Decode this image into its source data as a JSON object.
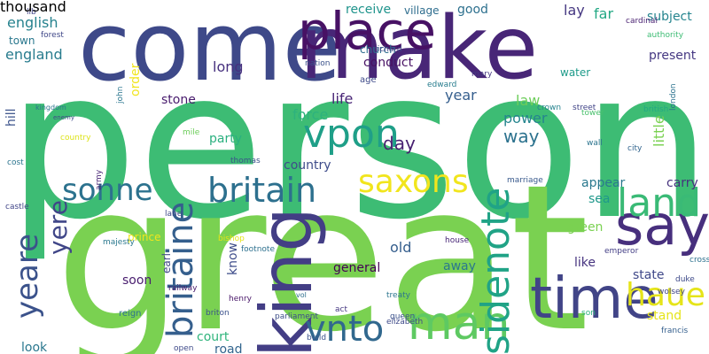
{
  "words": [
    {
      "text": "person",
      "color": "#3dbc74",
      "rotate": false
    },
    {
      "text": "great",
      "color": "#7ad151",
      "rotate": false
    },
    {
      "text": "come",
      "color": "#3e4989",
      "rotate": false
    },
    {
      "text": "make",
      "color": "#482677",
      "rotate": false
    },
    {
      "text": "place",
      "color": "#471164",
      "rotate": false
    },
    {
      "text": "king",
      "color": "#433e85",
      "rotate": true
    },
    {
      "text": "time",
      "color": "#414487",
      "rotate": false
    },
    {
      "text": "say",
      "color": "#472f7d",
      "rotate": false
    },
    {
      "text": "man",
      "color": "#5ec962",
      "rotate": false
    },
    {
      "text": "sidenote",
      "color": "#20a386",
      "rotate": true
    },
    {
      "text": "land",
      "color": "#3aba76",
      "rotate": false
    },
    {
      "text": "vnto",
      "color": "#31688e",
      "rotate": false
    },
    {
      "text": "saxons",
      "color": "#f1e51d",
      "rotate": false
    },
    {
      "text": "britaine",
      "color": "#355f8d",
      "rotate": true
    },
    {
      "text": "britain",
      "color": "#2d708e",
      "rotate": false
    },
    {
      "text": "sonne",
      "color": "#2c728e",
      "rotate": false
    },
    {
      "text": "vpon",
      "color": "#1f9f88",
      "rotate": false
    },
    {
      "text": "haue",
      "color": "#e5e419",
      "rotate": false
    },
    {
      "text": "yeare",
      "color": "#3b528b",
      "rotate": true
    },
    {
      "text": "yere",
      "color": "#404688",
      "rotate": true
    },
    {
      "text": "english",
      "color": "#26828e",
      "rotate": false
    },
    {
      "text": "england",
      "color": "#287c8e",
      "rotate": false
    },
    {
      "text": "town",
      "color": "#2a788e",
      "rotate": false
    },
    {
      "text": "receive",
      "color": "#1f948c",
      "rotate": false
    },
    {
      "text": "village",
      "color": "#2e6d8e",
      "rotate": false
    },
    {
      "text": "good",
      "color": "#2d708e",
      "rotate": false
    },
    {
      "text": "lay",
      "color": "#453781",
      "rotate": false
    },
    {
      "text": "far",
      "color": "#22a884",
      "rotate": false
    },
    {
      "text": "subject",
      "color": "#25848e",
      "rotate": false
    },
    {
      "text": "authority",
      "color": "#3dbc74",
      "rotate": false
    },
    {
      "text": "church",
      "color": "#2e6e8e",
      "rotate": false
    },
    {
      "text": "conduct",
      "color": "#471063",
      "rotate": false
    },
    {
      "text": "present",
      "color": "#453882",
      "rotate": false
    },
    {
      "text": "long",
      "color": "#46307e",
      "rotate": false
    },
    {
      "text": "order",
      "color": "#f1e51d",
      "rotate": true
    },
    {
      "text": "age",
      "color": "#3e4a89",
      "rotate": false
    },
    {
      "text": "water",
      "color": "#1e9b8a",
      "rotate": false
    },
    {
      "text": "life",
      "color": "#482576",
      "rotate": false
    },
    {
      "text": "year",
      "color": "#355e8d",
      "rotate": false
    },
    {
      "text": "law",
      "color": "#6ccd5a",
      "rotate": false
    },
    {
      "text": "kingdom",
      "color": "#2b758e",
      "rotate": false
    },
    {
      "text": "hill",
      "color": "#3b528b",
      "rotate": true
    },
    {
      "text": "stone",
      "color": "#481b6d",
      "rotate": false
    },
    {
      "text": "force",
      "color": "#2db27d",
      "rotate": false
    },
    {
      "text": "power",
      "color": "#25858e",
      "rotate": false
    },
    {
      "text": "way",
      "color": "#2c728e",
      "rotate": false
    },
    {
      "text": "little",
      "color": "#7ad151",
      "rotate": true
    },
    {
      "text": "day",
      "color": "#482071",
      "rotate": false
    },
    {
      "text": "enemy",
      "color": "#3f4788",
      "rotate": false
    },
    {
      "text": "party",
      "color": "#2ab07f",
      "rotate": false
    },
    {
      "text": "country",
      "color": "#3e4c8a",
      "rotate": false
    },
    {
      "text": "appear",
      "color": "#2a788e",
      "rotate": false
    },
    {
      "text": "carry",
      "color": "#46327e",
      "rotate": false
    },
    {
      "text": "sea",
      "color": "#1f988b",
      "rotate": false
    },
    {
      "text": "green",
      "color": "#7ad151",
      "rotate": false
    },
    {
      "text": "old",
      "color": "#355e8d",
      "rotate": false
    },
    {
      "text": "earl",
      "color": "#3f4788",
      "rotate": true
    },
    {
      "text": "know",
      "color": "#3e4c8a",
      "rotate": true
    },
    {
      "text": "soon",
      "color": "#481c6e",
      "rotate": false
    },
    {
      "text": "general",
      "color": "#440154",
      "rotate": false
    },
    {
      "text": "away",
      "color": "#2a788e",
      "rotate": false
    },
    {
      "text": "like",
      "color": "#46337f",
      "rotate": false
    },
    {
      "text": "state",
      "color": "#3f4889",
      "rotate": false
    },
    {
      "text": "duke",
      "color": "#3e4a89",
      "rotate": false
    },
    {
      "text": "stand",
      "color": "#e5e419",
      "rotate": false
    },
    {
      "text": "court",
      "color": "#2fb47c",
      "rotate": false
    },
    {
      "text": "prince",
      "color": "#f1e51d",
      "rotate": false
    },
    {
      "text": "reign",
      "color": "#2c728e",
      "rotate": false
    },
    {
      "text": "briton",
      "color": "#3b528b",
      "rotate": false
    },
    {
      "text": "henry",
      "color": "#481668",
      "rotate": false
    },
    {
      "text": "vol",
      "color": "#2e6e8e",
      "rotate": false
    },
    {
      "text": "road",
      "color": "#32658e",
      "rotate": false
    },
    {
      "text": "look",
      "color": "#2a778e",
      "rotate": false
    },
    {
      "text": "house",
      "color": "#482677",
      "rotate": false
    },
    {
      "text": "richard",
      "color": "#414487",
      "rotate": false
    },
    {
      "text": "crown",
      "color": "#25838e",
      "rotate": false
    },
    {
      "text": "street",
      "color": "#414487",
      "rotate": false
    },
    {
      "text": "british",
      "color": "#22a884",
      "rotate": false
    },
    {
      "text": "city",
      "color": "#32658e",
      "rotate": false
    },
    {
      "text": "cardinal",
      "color": "#481f70",
      "rotate": false
    },
    {
      "text": "son",
      "color": "#2db27d",
      "rotate": false
    },
    {
      "text": "francis",
      "color": "#355f8d",
      "rotate": false
    },
    {
      "text": "cross",
      "color": "#2c718e",
      "rotate": false
    },
    {
      "text": "marriage",
      "color": "#38598c",
      "rotate": false
    },
    {
      "text": "parliament",
      "color": "#3d4e8a",
      "rotate": false
    },
    {
      "text": "elizabeth",
      "color": "#3e4a89",
      "rotate": false
    },
    {
      "text": "footnote",
      "color": "#2d708e",
      "rotate": false
    },
    {
      "text": "castle",
      "color": "#404588",
      "rotate": false
    },
    {
      "text": "railway",
      "color": "#481a6c",
      "rotate": false
    },
    {
      "text": "john",
      "color": "#2a768e",
      "rotate": true
    },
    {
      "text": "thomas",
      "color": "#3b528b",
      "rotate": false
    },
    {
      "text": "lib",
      "color": "#404387",
      "rotate": false
    },
    {
      "text": "cost",
      "color": "#2b748e",
      "rotate": false
    },
    {
      "text": "mile",
      "color": "#6ccd5a",
      "rotate": false
    },
    {
      "text": "country",
      "color": "#dde318",
      "rotate": false
    },
    {
      "text": "tower",
      "color": "#4ac16d",
      "rotate": false
    },
    {
      "text": "wall",
      "color": "#2b748e",
      "rotate": false
    },
    {
      "text": "wolsey",
      "color": "#404588",
      "rotate": false
    },
    {
      "text": "queen",
      "color": "#3b528b",
      "rotate": false
    },
    {
      "text": "treaty",
      "color": "#2b758e",
      "rotate": false
    },
    {
      "text": "bishop",
      "color": "#e5e419",
      "rotate": false
    },
    {
      "text": "lane",
      "color": "#3e4989",
      "rotate": false
    },
    {
      "text": "army",
      "color": "#482475",
      "rotate": true
    },
    {
      "text": "open",
      "color": "#3e4a89",
      "rotate": false
    },
    {
      "text": "build",
      "color": "#3b528b",
      "rotate": false
    },
    {
      "text": "act",
      "color": "#453781",
      "rotate": false
    },
    {
      "text": "majesty",
      "color": "#2a788e",
      "rotate": false
    },
    {
      "text": "edward",
      "color": "#287d8e",
      "rotate": false
    },
    {
      "text": "nation",
      "color": "#3b528b",
      "rotate": false
    },
    {
      "text": "forest",
      "color": "#3f4788",
      "rotate": false
    },
    {
      "text": "emperor",
      "color": "#433e85",
      "rotate": false
    },
    {
      "text": "mary",
      "color": "#453882",
      "rotate": false
    },
    {
      "text": "london",
      "color": "#2c728e",
      "rotate": true
    },
    {
      "text": "thousand",
      "color": "#481769",
      "rotate": true
    }
  ]
}
